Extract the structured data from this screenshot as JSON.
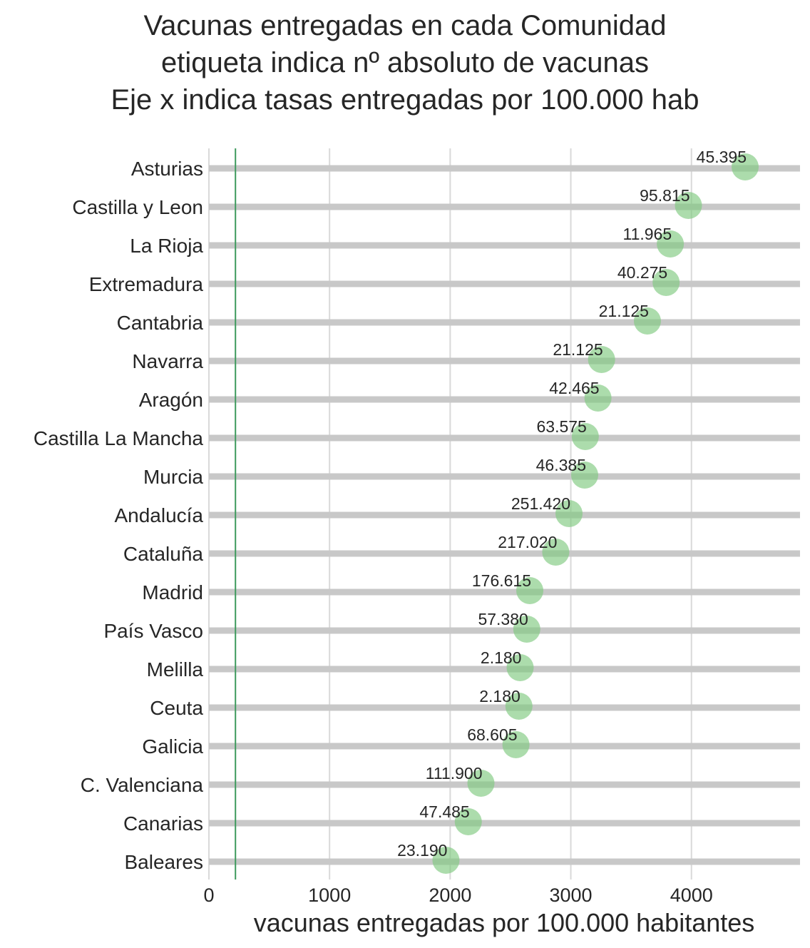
{
  "chart_data": {
    "type": "scatter",
    "title": [
      "Vacunas entregadas en cada Comunidad",
      "etiqueta indica nº absoluto de vacunas",
      "Eje x indica tasas entregadas por 100.000 hab"
    ],
    "xlabel": "vacunas entregadas por 100.000 habitantes",
    "ylabel": "",
    "xlim": [
      0,
      4900
    ],
    "xticks": [
      0,
      1000,
      2000,
      3000,
      4000
    ],
    "reference_line_x": 220,
    "grid": true,
    "categories": [
      "Asturias",
      "Castilla y Leon",
      "La Rioja",
      "Extremadura",
      "Cantabria",
      "Navarra",
      "Aragón",
      "Castilla La Mancha",
      "Murcia",
      "Andalucía",
      "Cataluña",
      "Madrid",
      "País Vasco",
      "Melilla",
      "Ceuta",
      "Galicia",
      "C. Valenciana",
      "Canarias",
      "Baleares"
    ],
    "values": [
      4445,
      3975,
      3825,
      3790,
      3635,
      3255,
      3225,
      3120,
      3115,
      2985,
      2875,
      2660,
      2635,
      2580,
      2570,
      2545,
      2255,
      2150,
      1965
    ],
    "labels": [
      "45.395",
      "95.815",
      "11.965",
      "40.275",
      "21.125",
      "21.125",
      "42.465",
      "63.575",
      "46.385",
      "251.420",
      "217.020",
      "176.615",
      "57.380",
      "2.180",
      "2.180",
      "68.605",
      "111.900",
      "47.485",
      "23.190"
    ],
    "colors": {
      "point": "#7fc97f",
      "stem": "#c8c8c8",
      "grid": "#d9d9d9",
      "reference_line": "#3d9a5c",
      "text": "#262626"
    }
  }
}
